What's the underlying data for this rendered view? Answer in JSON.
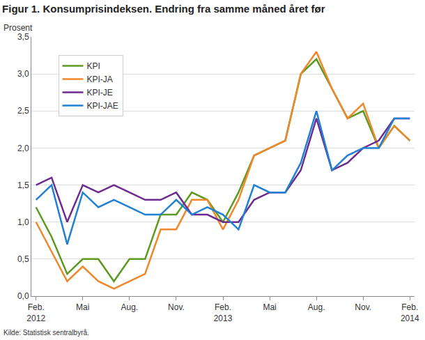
{
  "chart_data": {
    "type": "line",
    "title": "Figur 1. Konsumprisindeksen. Endring fra samme måned året før",
    "ylabel": "Prosent",
    "source": "Kilde: Statistisk sentralbyrå.",
    "categories": [
      "Feb.\n2012",
      null,
      null,
      "Mai",
      null,
      null,
      "Aug.",
      null,
      null,
      "Nov.",
      null,
      null,
      "Feb.\n2013",
      null,
      null,
      "Mai",
      null,
      null,
      "Aug.",
      null,
      null,
      "Nov.",
      null,
      null,
      "Feb.\n2014"
    ],
    "series": [
      {
        "name": "KPI",
        "color": "#5b9a1f",
        "values": [
          1.2,
          0.8,
          0.3,
          0.5,
          0.5,
          0.2,
          0.5,
          0.5,
          1.1,
          1.1,
          1.4,
          1.3,
          1.0,
          1.4,
          1.9,
          2.0,
          2.1,
          3.0,
          3.2,
          2.8,
          2.4,
          2.5,
          2.0,
          2.3,
          2.1
        ]
      },
      {
        "name": "KPI-JA",
        "color": "#f0872a",
        "values": [
          1.0,
          0.6,
          0.2,
          0.4,
          0.2,
          0.1,
          0.2,
          0.3,
          0.9,
          0.9,
          1.3,
          1.3,
          0.9,
          1.3,
          1.9,
          2.0,
          2.1,
          3.0,
          3.3,
          2.8,
          2.4,
          2.6,
          2.0,
          2.3,
          2.1
        ]
      },
      {
        "name": "KPI-JE",
        "color": "#6e2b8f",
        "values": [
          1.5,
          1.6,
          1.0,
          1.5,
          1.4,
          1.5,
          1.4,
          1.3,
          1.3,
          1.4,
          1.1,
          1.1,
          1.0,
          1.0,
          1.3,
          1.4,
          1.4,
          1.7,
          2.4,
          1.7,
          1.8,
          2.0,
          2.1,
          2.4,
          2.4
        ]
      },
      {
        "name": "KPI-JAE",
        "color": "#1f80d4",
        "values": [
          1.3,
          1.5,
          0.7,
          1.4,
          1.2,
          1.3,
          1.2,
          1.1,
          1.1,
          1.3,
          1.1,
          1.2,
          1.1,
          0.9,
          1.5,
          1.4,
          1.4,
          1.8,
          2.5,
          1.7,
          1.9,
          2.0,
          2.0,
          2.4,
          2.4
        ]
      }
    ],
    "ylim": [
      0,
      3.5
    ],
    "yticks": [
      {
        "value": 0,
        "label": "0,0"
      },
      {
        "value": 0.5,
        "label": "0,5"
      },
      {
        "value": 1,
        "label": "1,0"
      },
      {
        "value": 1.5,
        "label": "1,5"
      },
      {
        "value": 2,
        "label": "2,0"
      },
      {
        "value": 2.5,
        "label": "2,5"
      },
      {
        "value": 3,
        "label": "3,0"
      },
      {
        "value": 3.5,
        "label": "3,5"
      }
    ],
    "grid": true,
    "legend": "top left"
  }
}
